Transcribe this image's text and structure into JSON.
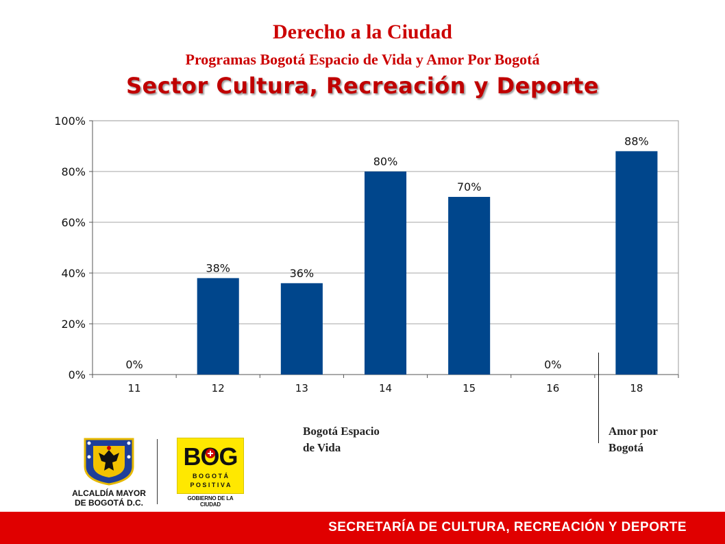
{
  "header": {
    "title": "Derecho a la Ciudad",
    "subtitle": "Programas Bogotá Espacio de Vida y Amor Por Bogotá",
    "sector": "Sector Cultura, Recreación y Deporte"
  },
  "chart_data": {
    "type": "bar",
    "categories": [
      "11",
      "12",
      "13",
      "14",
      "15",
      "16",
      "18"
    ],
    "values": [
      0,
      38,
      36,
      80,
      70,
      0,
      88
    ],
    "data_labels": [
      "0%",
      "38%",
      "36%",
      "80%",
      "70%",
      "0%",
      "88%"
    ],
    "yticks": [
      "0%",
      "20%",
      "40%",
      "60%",
      "80%",
      "100%"
    ],
    "ylim": [
      0,
      100
    ],
    "grid": true,
    "bar_color": "#00468c",
    "title": "",
    "xlabel": "",
    "ylabel": ""
  },
  "notes": {
    "group1_line1": "Bogotá Espacio",
    "group1_line2": "de Vida",
    "group2_line1": "Amor por",
    "group2_line2": "Bogotá"
  },
  "logos": {
    "alcaldia_line1": "ALCALDÍA MAYOR",
    "alcaldia_line2": "DE BOGOTÁ D.C.",
    "bog_mark": "BOG",
    "bog_line1": "B O G O T Á",
    "bog_line2": "P O S I T I V A",
    "bog_gov": "GOBIERNO DE LA CIUDAD"
  },
  "footer": {
    "text": "SECRETARÍA DE CULTURA, RECREACIÓN Y DEPORTE"
  },
  "colors": {
    "title_red": "#cc0000",
    "footer_red": "#e00000",
    "bar_blue": "#00468c"
  }
}
